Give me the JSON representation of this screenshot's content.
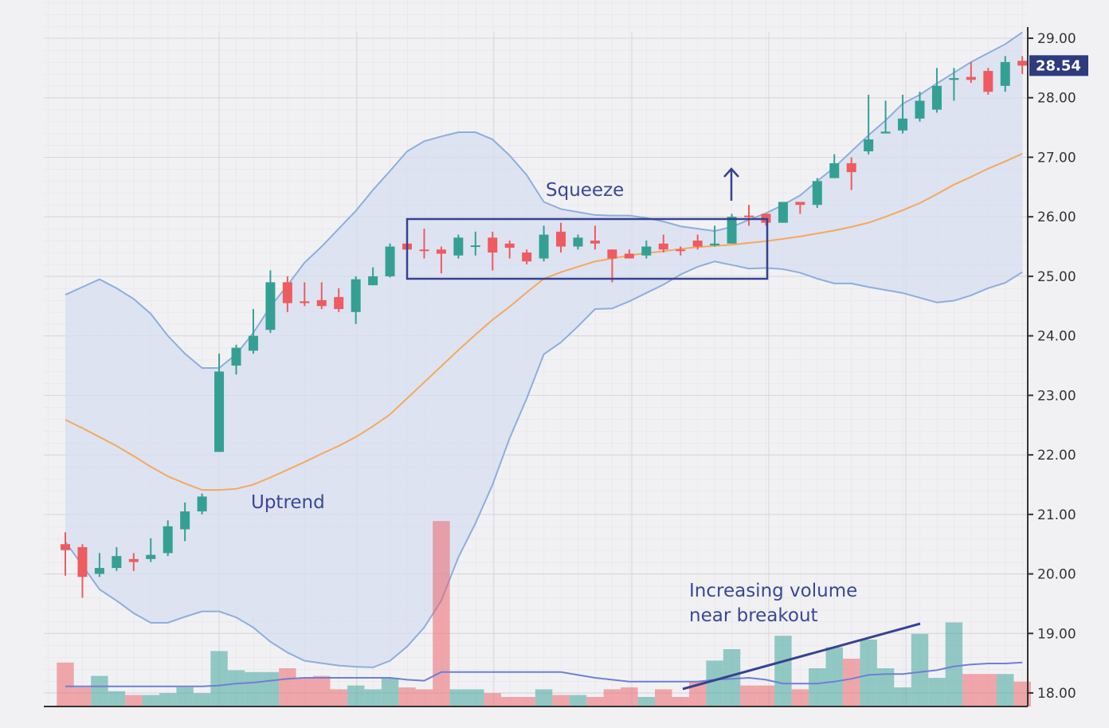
{
  "chart_data": {
    "type": "candlestick",
    "open": [
      20.5,
      20.45,
      20.0,
      20.1,
      20.25,
      20.25,
      20.35,
      20.75,
      21.05,
      22.05,
      23.5,
      23.75,
      24.1,
      24.9,
      24.58,
      24.6,
      24.65,
      24.4,
      24.85,
      25.0,
      25.55,
      25.45,
      25.45,
      25.35,
      25.5,
      25.65,
      25.55,
      25.4,
      25.3,
      25.75,
      25.5,
      25.6,
      25.45,
      25.38,
      25.35,
      25.55,
      25.45,
      25.6,
      25.52,
      25.55,
      26.02,
      26.05,
      25.9,
      26.25,
      26.2,
      26.65,
      26.9,
      27.1,
      27.4,
      27.45,
      27.65,
      27.8,
      28.3,
      28.35,
      28.45,
      28.2,
      28.62
    ],
    "high": [
      20.7,
      20.5,
      20.35,
      20.45,
      20.35,
      20.6,
      20.9,
      21.2,
      21.35,
      23.7,
      23.85,
      24.45,
      25.1,
      25.0,
      24.9,
      24.9,
      24.8,
      25.0,
      25.15,
      25.55,
      25.6,
      25.8,
      25.5,
      25.7,
      25.75,
      25.75,
      25.6,
      25.45,
      25.85,
      25.9,
      25.7,
      25.85,
      25.45,
      25.45,
      25.6,
      25.7,
      25.5,
      25.7,
      25.85,
      26.05,
      26.2,
      26.05,
      26.25,
      26.2,
      26.65,
      27.05,
      27.0,
      28.05,
      27.95,
      28.05,
      28.1,
      28.5,
      28.5,
      28.6,
      28.5,
      28.7,
      28.7
    ],
    "low": [
      19.97,
      19.6,
      19.95,
      20.05,
      20.05,
      20.2,
      20.3,
      20.55,
      21.0,
      22.05,
      23.35,
      23.7,
      24.05,
      24.4,
      24.5,
      24.45,
      24.4,
      24.2,
      24.85,
      24.98,
      25.45,
      25.3,
      25.05,
      25.3,
      25.35,
      25.1,
      25.3,
      25.2,
      25.25,
      25.4,
      25.45,
      25.45,
      24.9,
      25.3,
      25.3,
      25.4,
      25.35,
      25.45,
      25.5,
      25.55,
      25.85,
      25.85,
      25.9,
      26.05,
      26.15,
      26.65,
      26.45,
      27.05,
      27.4,
      27.4,
      27.6,
      27.75,
      27.95,
      28.25,
      28.05,
      28.1,
      28.4
    ],
    "close": [
      20.4,
      19.95,
      20.1,
      20.3,
      20.2,
      20.32,
      20.8,
      21.05,
      21.3,
      23.4,
      23.8,
      24.0,
      24.9,
      24.55,
      24.55,
      24.5,
      24.45,
      24.95,
      25.0,
      25.5,
      25.45,
      25.43,
      25.38,
      25.65,
      25.52,
      25.4,
      25.48,
      25.25,
      25.7,
      25.5,
      25.65,
      25.55,
      25.3,
      25.3,
      25.5,
      25.45,
      25.44,
      25.5,
      25.55,
      26.0,
      26.0,
      25.9,
      26.25,
      26.2,
      26.6,
      26.9,
      26.75,
      27.3,
      27.43,
      27.65,
      27.95,
      28.2,
      28.33,
      28.3,
      28.1,
      28.6,
      28.54
    ],
    "upper_band": [
      24.69,
      24.82,
      24.95,
      24.8,
      24.62,
      24.37,
      24.0,
      23.7,
      23.46,
      23.46,
      23.69,
      24.05,
      24.49,
      24.85,
      25.23,
      25.5,
      25.8,
      26.1,
      26.45,
      26.77,
      27.1,
      27.27,
      27.35,
      27.42,
      27.42,
      27.3,
      27.03,
      26.7,
      26.25,
      26.13,
      26.08,
      26.03,
      26.02,
      26.02,
      25.98,
      25.92,
      25.84,
      25.8,
      25.76,
      25.83,
      25.95,
      26.06,
      26.2,
      26.36,
      26.6,
      26.83,
      27.1,
      27.37,
      27.62,
      27.9,
      28.05,
      28.24,
      28.42,
      28.6,
      28.75,
      28.9,
      29.1
    ],
    "middle_band": [
      22.59,
      22.45,
      22.3,
      22.15,
      21.98,
      21.8,
      21.64,
      21.52,
      21.41,
      21.41,
      21.43,
      21.5,
      21.62,
      21.75,
      21.88,
      22.02,
      22.15,
      22.3,
      22.48,
      22.68,
      22.95,
      23.22,
      23.49,
      23.76,
      24.02,
      24.27,
      24.49,
      24.73,
      24.96,
      25.07,
      25.16,
      25.25,
      25.3,
      25.35,
      25.39,
      25.42,
      25.46,
      25.49,
      25.51,
      25.53,
      25.56,
      25.59,
      25.63,
      25.67,
      25.72,
      25.77,
      25.83,
      25.9,
      26.0,
      26.11,
      26.23,
      26.38,
      26.54,
      26.67,
      26.81,
      26.93,
      27.06
    ],
    "lower_band": [
      20.54,
      20.14,
      19.74,
      19.55,
      19.34,
      19.18,
      19.18,
      19.28,
      19.37,
      19.37,
      19.27,
      19.1,
      18.86,
      18.68,
      18.54,
      18.5,
      18.46,
      18.44,
      18.43,
      18.54,
      18.78,
      19.1,
      19.55,
      20.28,
      20.85,
      21.5,
      22.28,
      22.95,
      23.69,
      23.89,
      24.16,
      24.45,
      24.46,
      24.58,
      24.72,
      24.86,
      25.03,
      25.16,
      25.25,
      25.19,
      25.13,
      25.14,
      25.12,
      25.06,
      24.96,
      24.88,
      24.88,
      24.82,
      24.77,
      24.72,
      24.64,
      24.56,
      24.59,
      24.68,
      24.8,
      24.89,
      25.07
    ],
    "volume": [
      23,
      10,
      16,
      8,
      6,
      6,
      7,
      10,
      7,
      29,
      19,
      18,
      18,
      20,
      15,
      16,
      9,
      11,
      9,
      15,
      10,
      9,
      97,
      9,
      9,
      7,
      5,
      5,
      9,
      6,
      6,
      5,
      9,
      10,
      5,
      9,
      5,
      13,
      24,
      30,
      11,
      11,
      37,
      9,
      20,
      31,
      25,
      35,
      20,
      10,
      38,
      15,
      44,
      17,
      17,
      17,
      13
    ],
    "volume_ma": [
      10.5,
      10.5,
      10.5,
      10.5,
      10.5,
      10.5,
      10.5,
      10.5,
      10.5,
      11,
      12,
      12.5,
      13.5,
      14.5,
      15,
      15,
      15,
      15,
      15,
      15,
      14,
      13.5,
      18,
      18,
      18,
      18,
      18,
      18,
      18,
      18,
      16.5,
      15,
      14,
      13,
      13,
      13,
      13,
      13,
      14,
      14.5,
      15,
      14,
      12,
      12,
      12,
      13,
      14.5,
      16.5,
      17,
      17,
      18,
      19,
      21,
      22,
      22.5,
      22.5,
      23
    ],
    "ylim": [
      17.75,
      29.25
    ],
    "volume_ylim": [
      0,
      100
    ],
    "yticks": [
      {
        "value": 18,
        "label": "18.00"
      },
      {
        "value": 19,
        "label": "19.00"
      },
      {
        "value": 20,
        "label": "20.00"
      },
      {
        "value": 21,
        "label": "21.00"
      },
      {
        "value": 22,
        "label": "22.00"
      },
      {
        "value": 23,
        "label": "23.00"
      },
      {
        "value": 24,
        "label": "24.00"
      },
      {
        "value": 25,
        "label": "25.00"
      },
      {
        "value": 26,
        "label": "26.00"
      },
      {
        "value": 27,
        "label": "27.00"
      },
      {
        "value": 28,
        "label": "28.00"
      },
      {
        "value": 29,
        "label": "29.00"
      }
    ],
    "up_color": "#34a093",
    "down_color": "#ee5b60",
    "band_color": "#8eaedb",
    "middle_color": "#f5a85e",
    "volume_ma_color": "#6f80d2",
    "grid": true,
    "annotations": [
      "Uptrend",
      "Squeeze",
      "Increasing volume",
      "near breakout"
    ]
  }
}
